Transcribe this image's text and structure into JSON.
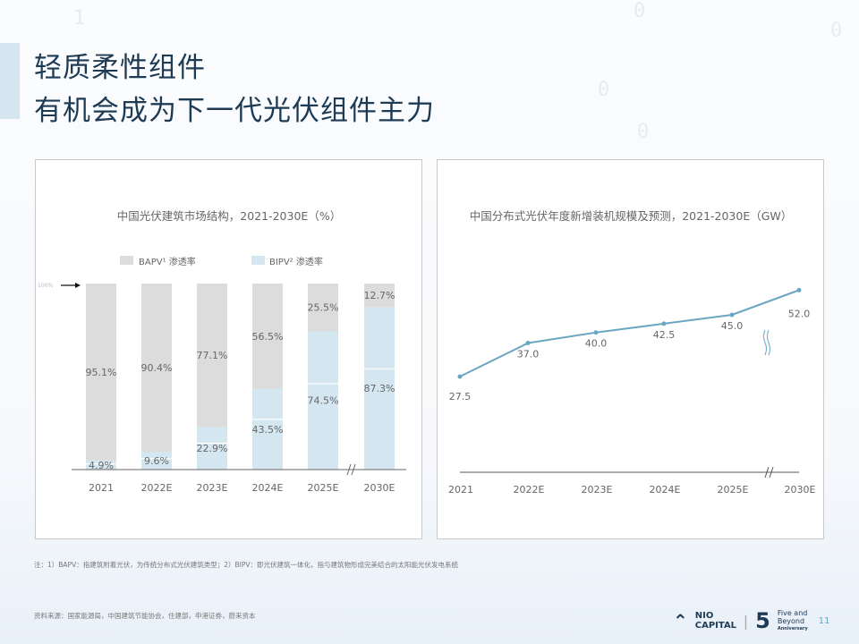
{
  "title": {
    "line1": "轻质柔性组件",
    "line2": "有机会成为下一代光伏组件主力"
  },
  "colors": {
    "bapv": "#dcdcdc",
    "bipv": "#d4e6f0",
    "line": "#6aa6c2",
    "title": "#1f3b54"
  },
  "chart_data": [
    {
      "type": "bar",
      "stacked": true,
      "title": "中国光伏建筑市场结构，2021-2030E（%）",
      "categories": [
        "2021",
        "2022E",
        "2023E",
        "2024E",
        "2025E",
        "2030E"
      ],
      "series": [
        {
          "name": "BIPV² 渗透率",
          "values": [
            4.9,
            9.6,
            22.9,
            43.5,
            74.5,
            87.3
          ]
        },
        {
          "name": "BAPV¹ 渗透率",
          "values": [
            95.1,
            90.4,
            77.1,
            56.5,
            25.5,
            12.7
          ]
        }
      ],
      "value_labels": {
        "bipv": [
          "4.9%",
          "9.6%",
          "22.9%",
          "43.5%",
          "74.5%",
          "87.3%"
        ],
        "bapv": [
          "95.1%",
          "90.4%",
          "77.1%",
          "56.5%",
          "25.5%",
          "12.7%"
        ]
      },
      "legend": [
        "BAPV¹ 渗透率",
        "BIPV² 渗透率"
      ],
      "annotation": "100%",
      "ylim": [
        0,
        100
      ]
    },
    {
      "type": "line",
      "title": "中国分布式光伏年度新增装机规模及预测，2021-2030E（GW）",
      "categories": [
        "2021",
        "2022E",
        "2023E",
        "2024E",
        "2025E",
        "2030E"
      ],
      "values": [
        27.5,
        37.0,
        40.0,
        42.5,
        45.0,
        52.0
      ],
      "labels": [
        "27.5",
        "37.0",
        "40.0",
        "42.5",
        "45.0",
        "52.0"
      ]
    }
  ],
  "notes": {
    "footnote": "注：1）BAPV：指建筑附着光伏，为传统分布式光伏建筑类型；2）BIPV：即光伏建筑一体化，指与建筑物形成完美结合的太阳能光伏发电系统",
    "source": "资料来源：国家能源局，中国建筑节能协会，住建部，申港证券，蔚来资本"
  },
  "footer": {
    "brand": "NIO CAPITAL",
    "five": "5",
    "tag1": "Five and",
    "tag2": "Beyond",
    "tag3": "Anniversary",
    "page": "11"
  }
}
